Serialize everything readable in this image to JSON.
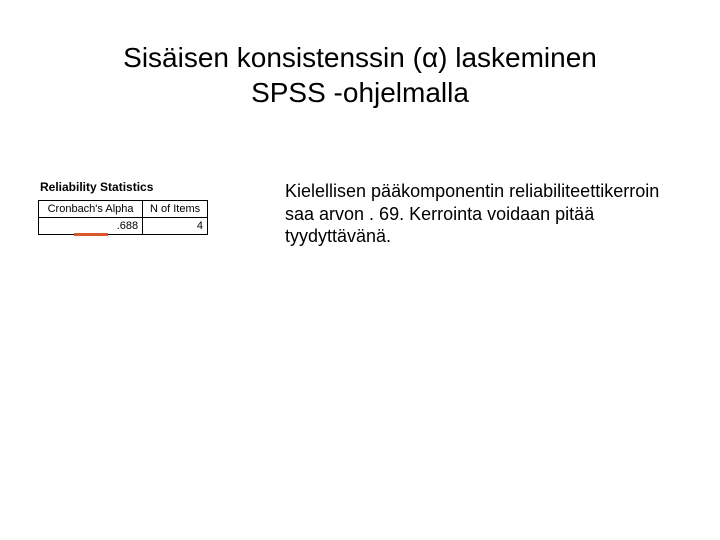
{
  "title": {
    "line1": "Sisäisen konsistenssin (α) laskeminen",
    "line2": "SPSS -ohjelmalla",
    "fontsize": 28,
    "color": "#000000"
  },
  "table": {
    "caption": "Reliability Statistics",
    "caption_fontsize": 12,
    "caption_weight": 700,
    "columns": [
      "Cronbach's Alpha",
      "N of Items"
    ],
    "row": [
      ".688",
      "4"
    ],
    "border_color": "#000000",
    "cell_fontsize": 11,
    "highlight_color": "#d85a2a",
    "highlight_width": 34,
    "highlight_height": 3
  },
  "description": {
    "text": "Kielellisen pääkomponentin reliabiliteettikerroin saa arvon . 69. Kerrointa voidaan pitää tyydyttävänä.",
    "fontsize": 18,
    "color": "#000000"
  },
  "background_color": "#ffffff"
}
